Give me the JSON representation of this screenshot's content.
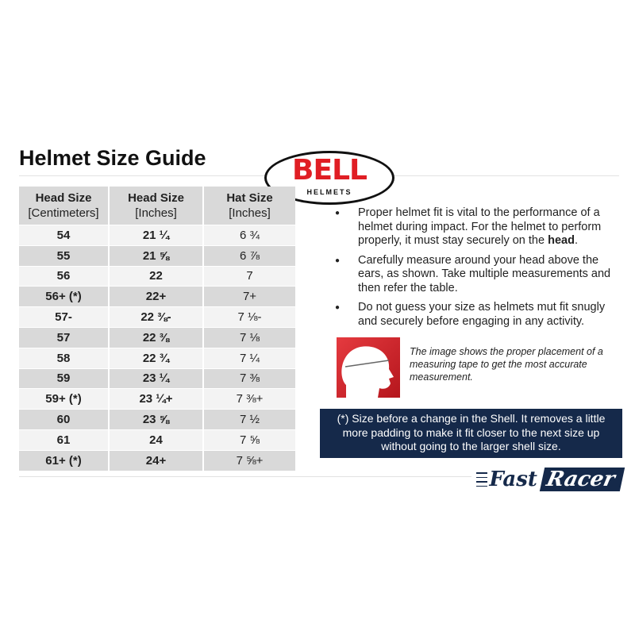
{
  "title": "Helmet Size Guide",
  "logo": {
    "brand": "BELL",
    "sub": "HELMETS"
  },
  "table": {
    "headers": [
      {
        "main": "Head Size",
        "sub": "[Centimeters]"
      },
      {
        "main": "Head Size",
        "sub": "[Inches]"
      },
      {
        "main": "Hat Size",
        "sub": "[Inches]"
      }
    ],
    "rows": [
      [
        "54",
        "21 ¼",
        "6 ¾"
      ],
      [
        "55",
        "21 ⅝",
        "6 ⅞"
      ],
      [
        "56",
        "22",
        "7"
      ],
      [
        "56+ (*)",
        "22+",
        "7+"
      ],
      [
        "57-",
        "22 ⅜-",
        "7 ⅛-"
      ],
      [
        "57",
        "22 ⅜",
        "7 ⅛"
      ],
      [
        "58",
        "22 ¾",
        "7 ¼"
      ],
      [
        "59",
        "23 ¼",
        "7 ⅜"
      ],
      [
        "59+ (*)",
        "23 ¼+",
        "7 ⅜+"
      ],
      [
        "60",
        "23 ⅝",
        "7 ½"
      ],
      [
        "61",
        "24",
        "7 ⅝"
      ],
      [
        "61+ (*)",
        "24+",
        "7 ⅝+"
      ]
    ]
  },
  "bullets": [
    {
      "text": "Proper helmet fit is vital to the performance of a helmet during impact. For the helmet to perform properly, it must stay securely on the ",
      "bold": "head",
      "end": "."
    },
    {
      "text": "Carefully measure around your head above the ears, as shown. Take multiple measurements and then refer the table."
    },
    {
      "text": "Do not guess your size as helmets mut fit snugly and securely before engaging in any activity."
    }
  ],
  "caption": "The image shows the proper placement of a measuring tape to get the most accurate measurement.",
  "note": "(*) Size before a change in the Shell. It removes a little more padding to make it fit closer to the next size up without going to the larger shell size.",
  "brand_footer": {
    "part1": "Fast",
    "part2": "Racer"
  },
  "colors": {
    "bell_red": "#e01e24",
    "navy": "#15294a",
    "row_light": "#f3f3f3",
    "row_dark": "#d9d9d9"
  }
}
